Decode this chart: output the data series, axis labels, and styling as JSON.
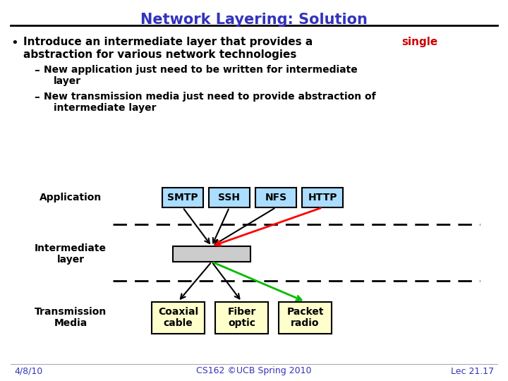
{
  "title": "Network Layering: Solution",
  "title_color": "#3333bb",
  "bg_color": "#ffffff",
  "bullet_text_1a": "Introduce an intermediate layer that provides a ",
  "bullet_text_1b": "single",
  "bullet_text_1b_color": "#cc0000",
  "bullet_text_1d": "abstraction for various network technologies",
  "sub1_line1": "New application just need to be written for intermediate",
  "sub1_line2": "layer",
  "sub2_line1": "New transmission media just need to provide abstraction of",
  "sub2_line2": "intermediate layer",
  "app_boxes": [
    "SMTP",
    "SSH",
    "NFS",
    "HTTP"
  ],
  "app_box_color": "#aaddff",
  "trans_boxes": [
    "Coaxial\ncable",
    "Fiber\noptic",
    "Packet\nradio"
  ],
  "trans_box_color": "#ffffcc",
  "inter_box_color": "#cccccc",
  "label_application": "Application",
  "label_intermediate": "Intermediate\nlayer",
  "label_transmission": "Transmission\nMedia",
  "footer_left": "4/8/10",
  "footer_center": "CS162 ©UCB Spring 2010",
  "footer_right": "Lec 21.17",
  "footer_color": "#3333bb"
}
